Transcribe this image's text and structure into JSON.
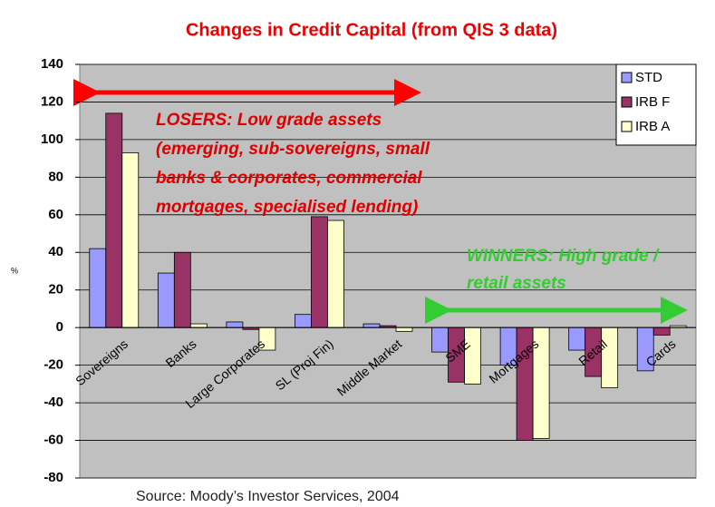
{
  "chart_data": {
    "type": "bar",
    "title": "Changes in Credit Capital (from QIS 3 data)",
    "y_label": "%",
    "source": "Source: Moody’s Investor Services, 2004",
    "categories": [
      "Sovereigns",
      "Banks",
      "Large Corporates",
      "SL (Proj Fin)",
      "Middle Market",
      "SME",
      "Mortgages",
      "Retail",
      "Cards"
    ],
    "series": [
      {
        "name": "STD",
        "color": "#9999ff",
        "values": [
          42,
          29,
          3,
          7,
          2,
          -13,
          -20,
          -12,
          -23
        ]
      },
      {
        "name": "IRB F",
        "color": "#993366",
        "values": [
          114,
          40,
          -1,
          59,
          1,
          -29,
          -60,
          -26,
          -4
        ]
      },
      {
        "name": "IRB A",
        "color": "#ffffcc",
        "values": [
          93,
          2,
          -12,
          57,
          -2,
          -30,
          -59,
          -32,
          1
        ]
      }
    ],
    "ylim": [
      -80,
      140
    ],
    "yticks": [
      -80,
      -60,
      -40,
      -20,
      0,
      20,
      40,
      60,
      80,
      100,
      120,
      140
    ],
    "grid": true,
    "legend": "top-right",
    "annotations": [
      {
        "color": "#dd0000",
        "lines": [
          "LOSERS: Low grade assets",
          "(emerging, sub-sovereigns, small",
          "banks & corporates, commercial",
          "mortgages, specialised lending)"
        ]
      },
      {
        "color": "#33cc33",
        "lines": [
          "WINNERS: High grade /",
          "retail assets"
        ]
      }
    ]
  }
}
